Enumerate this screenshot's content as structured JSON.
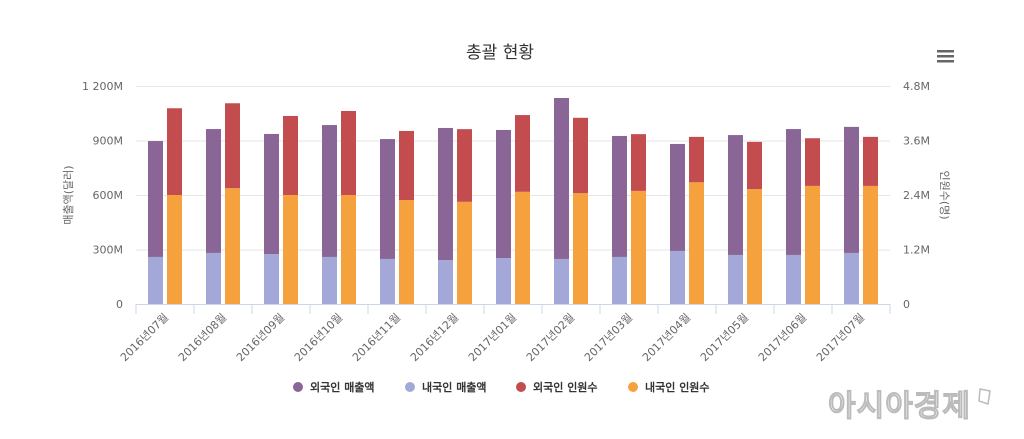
{
  "chart_data": {
    "type": "bar",
    "title": "총괄 현황",
    "categories": [
      "2016년07월",
      "2016년08월",
      "2016년09월",
      "2016년10월",
      "2016년11월",
      "2016년12월",
      "2017년01월",
      "2017년02월",
      "2017년03월",
      "2017년04월",
      "2017년05월",
      "2017년06월",
      "2017년07월"
    ],
    "y_left": {
      "label": "매출액(달러)",
      "ticks": [
        "0",
        "300M",
        "600M",
        "900M",
        "1 200M"
      ],
      "range": [
        0,
        1200
      ]
    },
    "y_right": {
      "label": "인원수(명)",
      "ticks": [
        "0",
        "1.2M",
        "2.4M",
        "3.6M",
        "4.8M"
      ],
      "range": [
        0,
        4.8
      ]
    },
    "grid": true,
    "legend_position": "bottom",
    "series": [
      {
        "name": "외국인 매출액",
        "stack": "revenue",
        "axis": "left",
        "color": "#8a6696",
        "values": [
          638,
          682,
          661,
          726,
          660,
          727,
          705,
          886,
          666,
          589,
          660,
          693,
          694
        ]
      },
      {
        "name": "내국인 매출액",
        "stack": "revenue",
        "axis": "left",
        "color": "#a4a8d8",
        "values": [
          259,
          281,
          275,
          259,
          248,
          242,
          253,
          248,
          259,
          292,
          270,
          270,
          281
        ]
      },
      {
        "name": "외국인 인원수",
        "stack": "people",
        "axis": "right",
        "color": "#c24c4e",
        "values": [
          1.91,
          1.87,
          1.74,
          1.85,
          1.52,
          1.6,
          1.69,
          1.66,
          1.25,
          1.0,
          1.04,
          1.05,
          1.08
        ]
      },
      {
        "name": "내국인 인원수",
        "stack": "people",
        "axis": "right",
        "color": "#f5a23e",
        "values": [
          2.4,
          2.55,
          2.4,
          2.4,
          2.29,
          2.25,
          2.47,
          2.44,
          2.49,
          2.68,
          2.53,
          2.6,
          2.6
        ]
      }
    ],
    "value_units": {
      "left": "M (million dollars)",
      "right": "M (million persons)"
    }
  },
  "menu": {
    "icon": "hamburger-menu-icon"
  },
  "watermark": {
    "text": "아시아경제"
  }
}
